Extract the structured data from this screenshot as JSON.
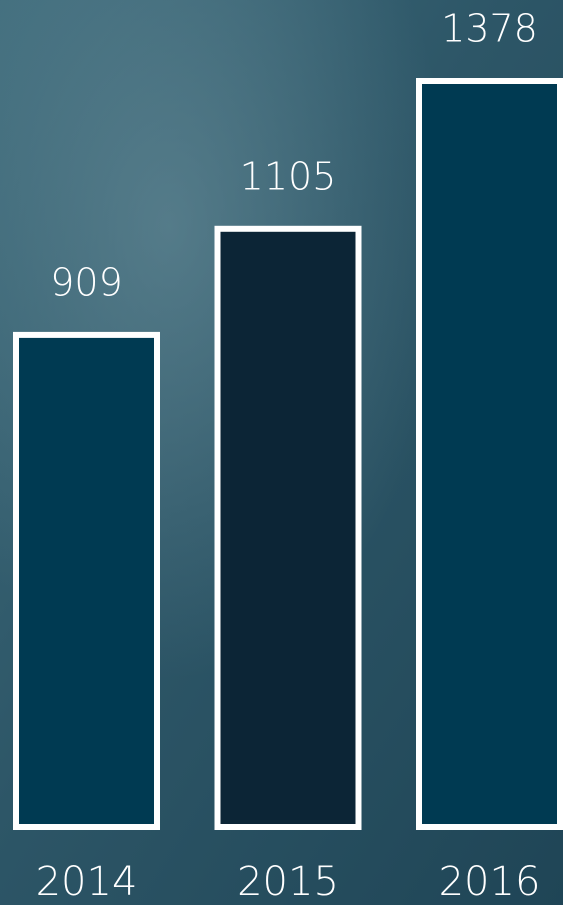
{
  "chart_data": {
    "type": "bar",
    "categories": [
      "2014",
      "2015",
      "2016"
    ],
    "values": [
      909,
      1105,
      1378
    ],
    "colors": [
      "#003a52",
      "#0c2536",
      "#003a52"
    ]
  }
}
